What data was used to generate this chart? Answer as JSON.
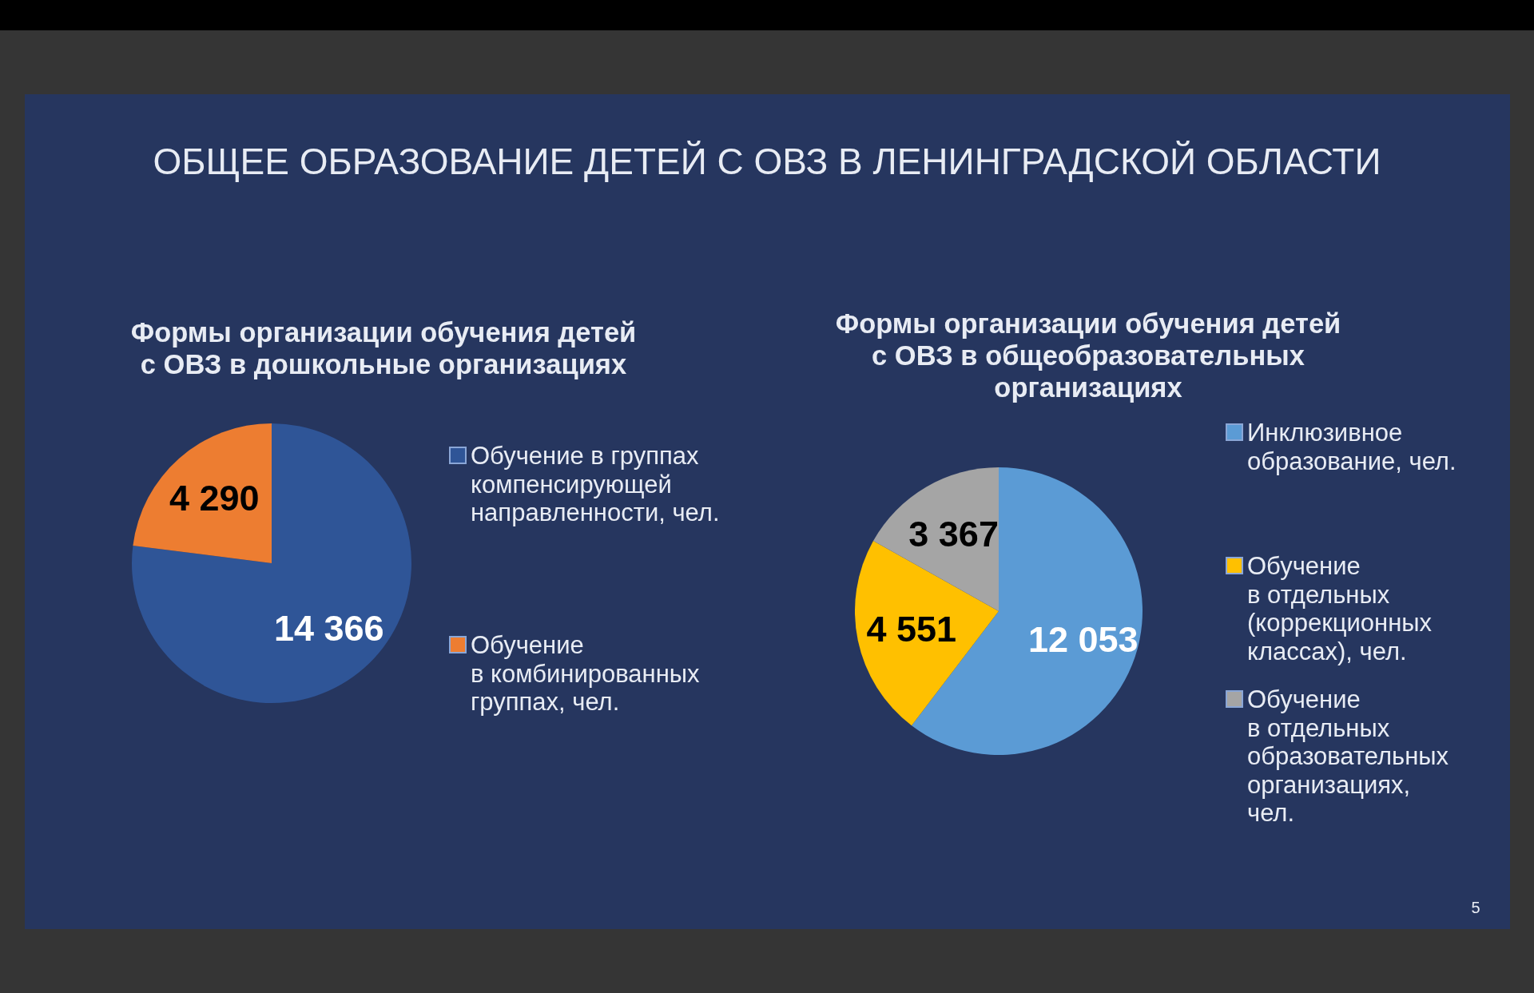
{
  "chart_data": [
    {
      "type": "other",
      "title": "ОБЩЕЕ ОБРАЗОВАНИЕ ДЕТЕЙ С ОВЗ В ЛЕНИНГРАДСКОЙ ОБЛАСТИ",
      "annotations": [
        "5"
      ]
    },
    {
      "type": "pie",
      "title": "Формы организации обучения детей с ОВЗ в дошкольные организациях",
      "categories": [
        "Обучение в группах компенсирующей направленности, чел.",
        "Обучение в комбинированных группах, чел."
      ],
      "values": [
        14366,
        4290
      ],
      "colors": [
        "#2f5597",
        "#ed7d31"
      ],
      "value_labels": [
        "14 366",
        "4 290"
      ],
      "legend": "right"
    },
    {
      "type": "pie",
      "title": "Формы организации обучения детей с ОВЗ в общеобразовательных организациях",
      "categories": [
        "Инклюзивное образование, чел.",
        "Обучение в отдельных (коррекционных классах), чел.",
        "Обучение в отдельных образовательных организациях, чел."
      ],
      "values": [
        12053,
        4551,
        3367
      ],
      "colors": [
        "#5b9bd5",
        "#ffc000",
        "#a5a5a5"
      ],
      "value_labels": [
        "12 053",
        "4 551",
        "3 367"
      ],
      "legend": "right"
    }
  ]
}
